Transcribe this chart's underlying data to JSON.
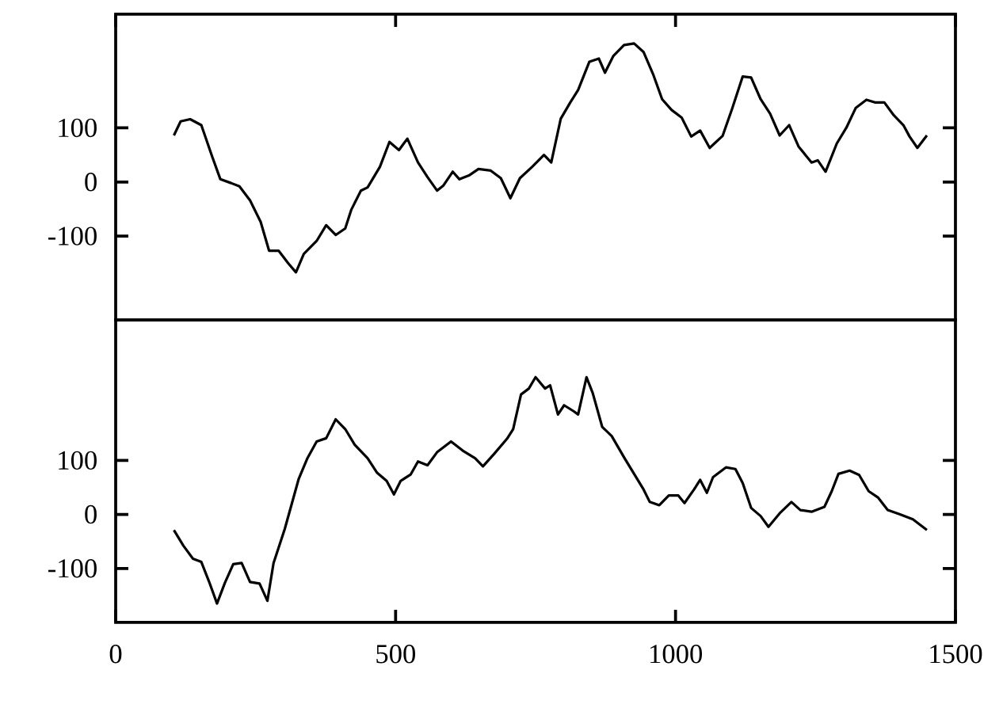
{
  "chart_data": [
    {
      "type": "line",
      "color": "#000000",
      "xlim": [
        0,
        1500
      ],
      "xticks": [
        0,
        500,
        1000,
        1500
      ],
      "ylim": [
        -255,
        310
      ],
      "yticks": [
        -100,
        0,
        100
      ],
      "tick_labels": "y",
      "x": [
        104,
        116,
        133,
        153,
        172,
        187,
        206,
        221,
        240,
        259,
        274,
        291,
        308,
        322,
        336,
        359,
        376,
        393,
        410,
        421,
        438,
        450,
        472,
        489,
        506,
        521,
        540,
        557,
        574,
        585,
        602,
        614,
        631,
        648,
        670,
        688,
        705,
        722,
        744,
        765,
        778,
        795,
        812,
        826,
        846,
        863,
        874,
        889,
        908,
        926,
        943,
        960,
        976,
        993,
        1011,
        1028,
        1044,
        1061,
        1084,
        1101,
        1120,
        1135,
        1152,
        1169,
        1186,
        1203,
        1220,
        1243,
        1254,
        1268,
        1288,
        1305,
        1322,
        1341,
        1356,
        1373,
        1390,
        1407,
        1418,
        1432,
        1449
      ],
      "values": [
        86,
        112,
        116,
        105,
        48,
        5,
        -2,
        -8,
        -34,
        -74,
        -127,
        -127,
        -150,
        -167,
        -133,
        -109,
        -80,
        -98,
        -86,
        -51,
        -16,
        -10,
        28,
        74,
        59,
        80,
        36,
        9,
        -16,
        -7,
        19,
        5,
        12,
        24,
        21,
        7,
        -30,
        7,
        28,
        50,
        36,
        117,
        147,
        170,
        222,
        228,
        202,
        233,
        253,
        256,
        240,
        199,
        153,
        133,
        119,
        84,
        95,
        63,
        85,
        135,
        195,
        193,
        153,
        126,
        86,
        105,
        65,
        36,
        40,
        19,
        71,
        100,
        137,
        152,
        147,
        147,
        123,
        105,
        84,
        63,
        86
      ]
    },
    {
      "type": "line",
      "color": "#000000",
      "xlim": [
        0,
        1500
      ],
      "xticks": [
        0,
        500,
        1000,
        1500
      ],
      "ylim": [
        -200,
        360
      ],
      "yticks": [
        -100,
        0,
        100
      ],
      "x": [
        104,
        121,
        138,
        153,
        167,
        181,
        195,
        210,
        225,
        240,
        257,
        271,
        282,
        302,
        327,
        342,
        359,
        376,
        393,
        410,
        427,
        450,
        467,
        484,
        497,
        509,
        527,
        540,
        557,
        574,
        599,
        620,
        642,
        656,
        676,
        699,
        710,
        724,
        738,
        750,
        767,
        776,
        790,
        801,
        818,
        826,
        841,
        852,
        869,
        886,
        909,
        926,
        943,
        954,
        971,
        988,
        1005,
        1016,
        1033,
        1044,
        1056,
        1067,
        1090,
        1107,
        1120,
        1135,
        1152,
        1166,
        1186,
        1207,
        1223,
        1243,
        1266,
        1279,
        1291,
        1311,
        1328,
        1345,
        1362,
        1379,
        1401,
        1424,
        1449
      ],
      "values": [
        -29,
        -58,
        -82,
        -88,
        -125,
        -165,
        -127,
        -92,
        -90,
        -125,
        -128,
        -160,
        -90,
        -27,
        66,
        103,
        135,
        141,
        176,
        158,
        129,
        104,
        77,
        62,
        37,
        62,
        74,
        98,
        91,
        115,
        135,
        118,
        104,
        89,
        112,
        140,
        158,
        222,
        233,
        254,
        233,
        239,
        185,
        202,
        191,
        185,
        254,
        225,
        162,
        145,
        104,
        75,
        46,
        23,
        17,
        35,
        35,
        21,
        46,
        64,
        40,
        69,
        87,
        84,
        58,
        12,
        -3,
        -23,
        2,
        23,
        8,
        5,
        14,
        43,
        75,
        81,
        73,
        43,
        31,
        8,
        0,
        -9,
        -29
      ]
    }
  ]
}
